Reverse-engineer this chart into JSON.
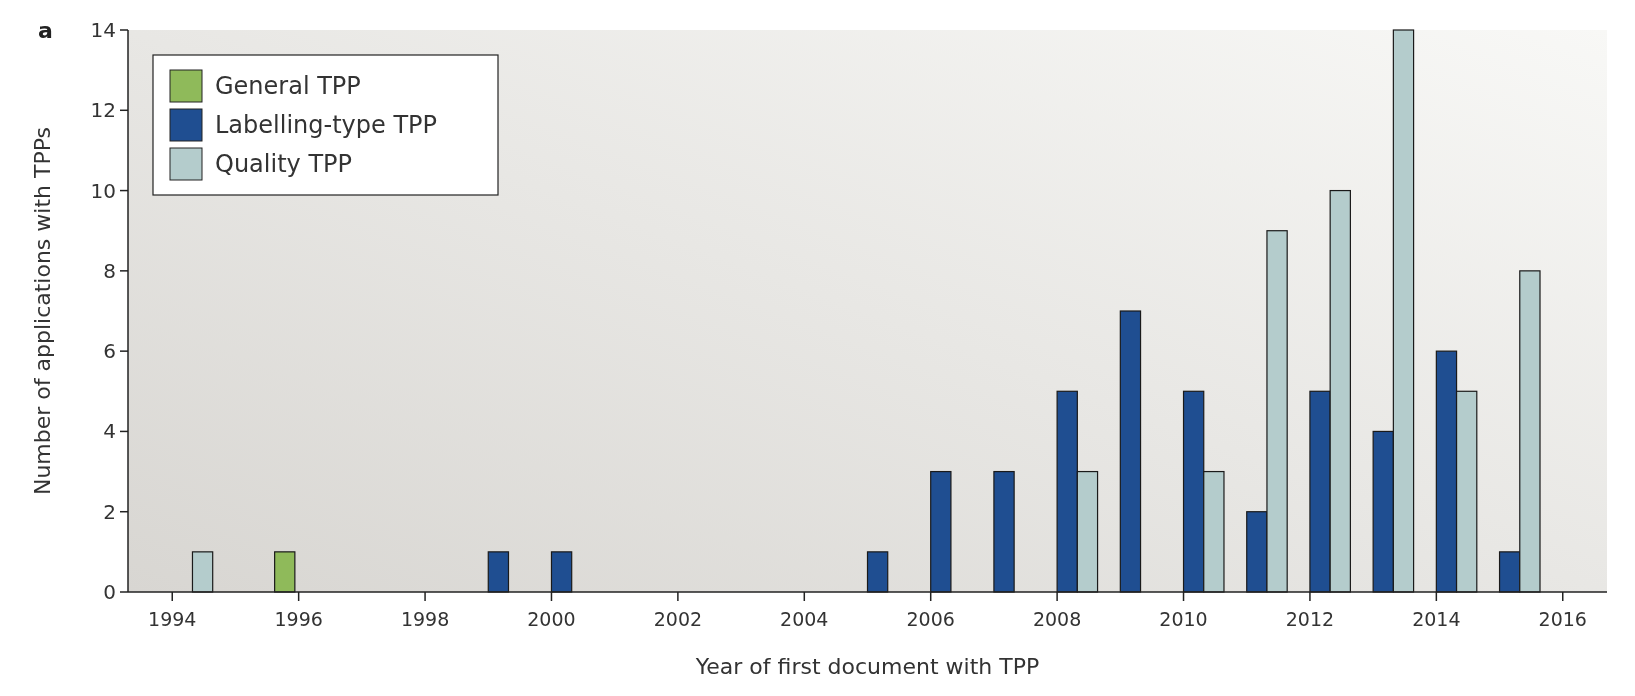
{
  "chart_data": {
    "type": "bar",
    "xlabel": "Year of first document with TPP",
    "ylabel": "Number of applications with TPPs",
    "annotations": [
      "a"
    ],
    "xlim": [
      1993.3,
      2016.7
    ],
    "xticks": [
      1994,
      1996,
      1998,
      2000,
      2002,
      2004,
      2006,
      2008,
      2010,
      2012,
      2014,
      2016
    ],
    "ylim": [
      0,
      14
    ],
    "yticks": [
      0,
      2,
      4,
      6,
      8,
      10,
      12,
      14
    ],
    "legend": "top left",
    "grid": false,
    "series": [
      {
        "name": "General TPP",
        "color": "#8fba5a",
        "x": [
          1996
        ],
        "values": [
          1
        ]
      },
      {
        "name": "Labelling-type TPP",
        "color": "#1f4e91",
        "x": [
          1999,
          2000,
          2005,
          2006,
          2007,
          2008,
          2009,
          2010,
          2011,
          2012,
          2013,
          2014,
          2015
        ],
        "values": [
          1,
          1,
          1,
          3,
          3,
          5,
          7,
          5,
          2,
          5,
          4,
          6,
          1
        ]
      },
      {
        "name": "Quality TPP",
        "color": "#b4cccc",
        "x": [
          1994,
          2008,
          2010,
          2011,
          2012,
          2013,
          2014,
          2015
        ],
        "values": [
          1,
          3,
          3,
          9,
          10,
          14,
          5,
          8
        ]
      }
    ]
  }
}
